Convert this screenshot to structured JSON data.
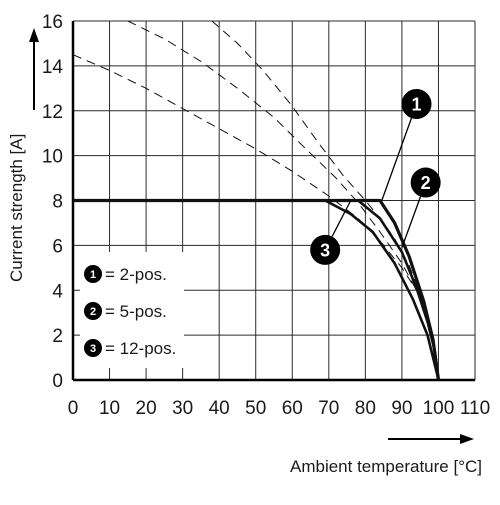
{
  "chart_data": {
    "type": "line",
    "title": "",
    "xlabel": "Ambient temperature [°C]",
    "ylabel": "Current strength [A]",
    "xlim": [
      0,
      110
    ],
    "ylim": [
      0,
      16
    ],
    "x_ticks": [
      0,
      10,
      20,
      30,
      40,
      50,
      60,
      70,
      80,
      90,
      100,
      110
    ],
    "y_ticks": [
      0,
      2,
      4,
      6,
      8,
      10,
      12,
      14,
      16
    ],
    "grid": true,
    "legend_position": "bottom-left",
    "legend": [
      {
        "badge": "1",
        "text": "= 2-pos."
      },
      {
        "badge": "2",
        "text": "= 5-pos."
      },
      {
        "badge": "3",
        "text": "= 12-pos."
      }
    ],
    "series": [
      {
        "badge": "1",
        "style": "solid",
        "points": [
          [
            0,
            8
          ],
          [
            84,
            8
          ],
          [
            88,
            7
          ],
          [
            92,
            5.5
          ],
          [
            96,
            3.5
          ],
          [
            98.5,
            1.8
          ],
          [
            100,
            0
          ]
        ]
      },
      {
        "badge": "2",
        "style": "solid",
        "points": [
          [
            78,
            8
          ],
          [
            84,
            7.2
          ],
          [
            90,
            5.7
          ],
          [
            94,
            4.1
          ],
          [
            97,
            2.6
          ],
          [
            99,
            1.3
          ],
          [
            100,
            0
          ]
        ]
      },
      {
        "badge": "3",
        "style": "solid",
        "points": [
          [
            69,
            8
          ],
          [
            76,
            7.4
          ],
          [
            82,
            6.6
          ],
          [
            88,
            5.2
          ],
          [
            93,
            3.6
          ],
          [
            97,
            2.0
          ],
          [
            100,
            0
          ]
        ]
      },
      {
        "badge": "",
        "style": "dashed",
        "points": [
          [
            0,
            14.5
          ],
          [
            10,
            13.8
          ],
          [
            20,
            13
          ],
          [
            30,
            12.1
          ],
          [
            40,
            11.2
          ],
          [
            50,
            10.3
          ],
          [
            60,
            9.3
          ],
          [
            70,
            8.2
          ],
          [
            78,
            7.2
          ],
          [
            84,
            6.2
          ],
          [
            90,
            5
          ],
          [
            94,
            4
          ],
          [
            97,
            2.8
          ],
          [
            99,
            1.5
          ],
          [
            100,
            0
          ]
        ]
      },
      {
        "badge": "",
        "style": "dashed",
        "points": [
          [
            15,
            16
          ],
          [
            25,
            15.2
          ],
          [
            35,
            14.2
          ],
          [
            45,
            13
          ],
          [
            55,
            11.7
          ],
          [
            65,
            10.1
          ],
          [
            72,
            9
          ],
          [
            78,
            7.9
          ],
          [
            84,
            6.6
          ],
          [
            90,
            5.2
          ],
          [
            94,
            4
          ],
          [
            97,
            2.7
          ],
          [
            99,
            1.4
          ],
          [
            100,
            0
          ]
        ]
      },
      {
        "badge": "",
        "style": "dashed",
        "points": [
          [
            38,
            16
          ],
          [
            45,
            15
          ],
          [
            52,
            13.8
          ],
          [
            60,
            12.2
          ],
          [
            67,
            10.6
          ],
          [
            74,
            9.1
          ],
          [
            80,
            8
          ],
          [
            84,
            7.2
          ],
          [
            88,
            6.3
          ],
          [
            92,
            5.1
          ],
          [
            95.5,
            3.6
          ],
          [
            98,
            2.1
          ],
          [
            100,
            0
          ]
        ]
      }
    ],
    "callouts": [
      {
        "badge": "1",
        "series_index": 0,
        "anchor": [
          84.5,
          8
        ],
        "label_at": [
          94,
          12.3
        ]
      },
      {
        "badge": "2",
        "series_index": 1,
        "anchor": [
          90,
          5.9
        ],
        "label_at": [
          96.5,
          8.8
        ]
      },
      {
        "badge": "3",
        "series_index": 2,
        "anchor": [
          76,
          8
        ],
        "label_at": [
          69,
          5.8
        ]
      }
    ]
  }
}
